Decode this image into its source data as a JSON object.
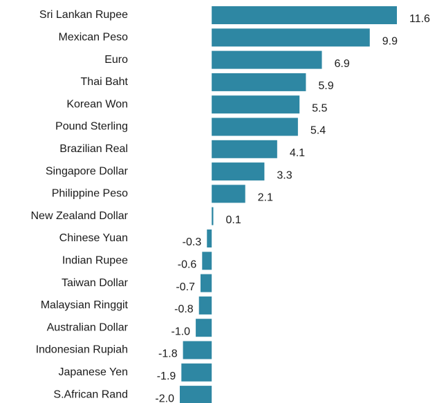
{
  "chart_data": {
    "type": "bar",
    "orientation": "horizontal",
    "color": "#2e87a3",
    "categories": [
      "Sri Lankan Rupee",
      "Mexican Peso",
      "Euro",
      "Thai Baht",
      "Korean Won",
      "Pound Sterling",
      "Brazilian Real",
      "Singapore Dollar",
      "Philippine Peso",
      "New Zealand Dollar",
      "Chinese Yuan",
      "Indian Rupee",
      "Taiwan Dollar",
      "Malaysian Ringgit",
      "Australian Dollar",
      "Indonesian Rupiah",
      "Japanese Yen",
      "S.African Rand"
    ],
    "values": [
      11.6,
      9.9,
      6.9,
      5.9,
      5.5,
      5.4,
      4.1,
      3.3,
      2.1,
      0.1,
      -0.3,
      -0.6,
      -0.7,
      -0.8,
      -1.0,
      -1.8,
      -1.9,
      -2.0
    ],
    "value_labels": [
      "11.6",
      "9.9",
      "6.9",
      "5.9",
      "5.5",
      "5.4",
      "4.1",
      "3.3",
      "2.1",
      "0.1",
      "-0.3",
      "-0.6",
      "-0.7",
      "-0.8",
      "-1.0",
      "-1.8",
      "-1.9",
      "-2.0"
    ]
  }
}
